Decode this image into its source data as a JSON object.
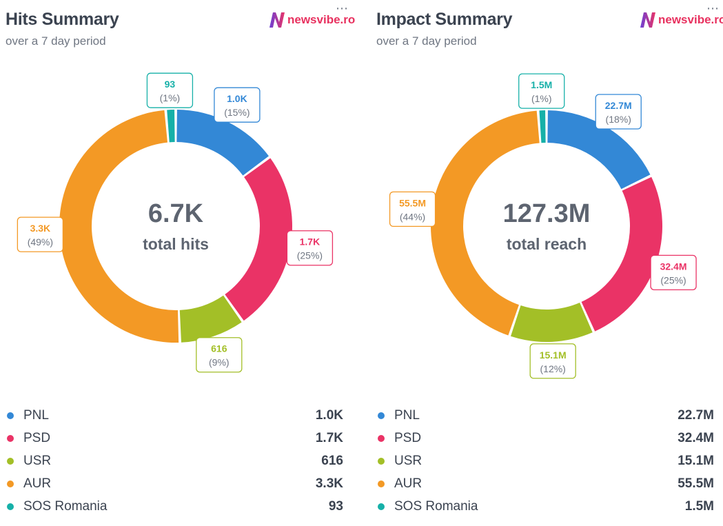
{
  "brand_text": "newsvibe.ro",
  "colors": {
    "PNL": "#3388d6",
    "PSD": "#ea3366",
    "USR": "#a3bf27",
    "AUR": "#f39925",
    "SOS Romania": "#16b0a8"
  },
  "chart_data": [
    {
      "type": "pie",
      "title": "Hits Summary",
      "subtitle": "over a 7 day period",
      "center_value": "6.7K",
      "center_label": "total hits",
      "slices": [
        {
          "name": "PNL",
          "value": 1000,
          "value_label": "1.0K",
          "pct_label": "(15%)"
        },
        {
          "name": "PSD",
          "value": 1700,
          "value_label": "1.7K",
          "pct_label": "(25%)"
        },
        {
          "name": "USR",
          "value": 616,
          "value_label": "616",
          "pct_label": "(9%)"
        },
        {
          "name": "AUR",
          "value": 3300,
          "value_label": "3.3K",
          "pct_label": "(49%)"
        },
        {
          "name": "SOS Romania",
          "value": 93,
          "value_label": "93",
          "pct_label": "(1%)"
        }
      ]
    },
    {
      "type": "pie",
      "title": "Impact Summary",
      "subtitle": "over a 7 day period",
      "center_value": "127.3M",
      "center_label": "total reach",
      "slices": [
        {
          "name": "PNL",
          "value": 22.7,
          "value_label": "22.7M",
          "pct_label": "(18%)"
        },
        {
          "name": "PSD",
          "value": 32.4,
          "value_label": "32.4M",
          "pct_label": "(25%)"
        },
        {
          "name": "USR",
          "value": 15.1,
          "value_label": "15.1M",
          "pct_label": "(12%)"
        },
        {
          "name": "AUR",
          "value": 55.5,
          "value_label": "55.5M",
          "pct_label": "(44%)"
        },
        {
          "name": "SOS Romania",
          "value": 1.5,
          "value_label": "1.5M",
          "pct_label": "(1%)"
        }
      ]
    }
  ]
}
